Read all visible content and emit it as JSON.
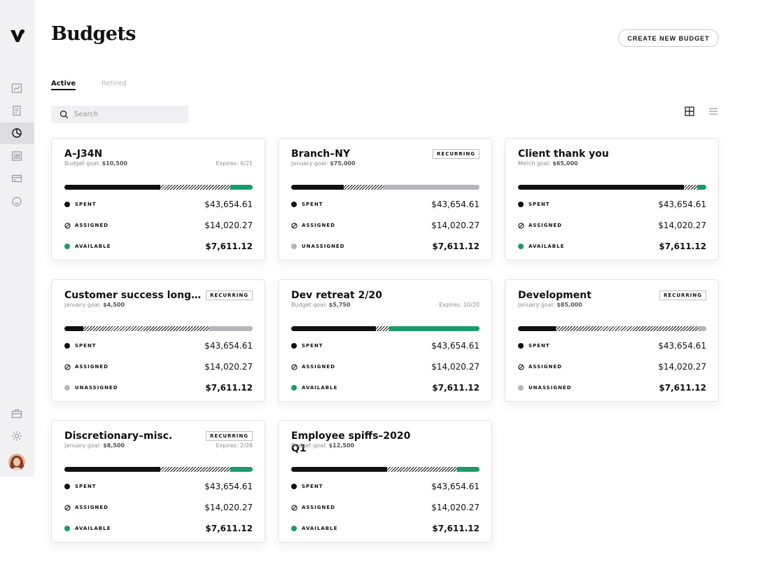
{
  "app": {
    "title": "Budgets"
  },
  "header": {
    "create_button": "CREATE NEW BUDGET"
  },
  "tabs": [
    {
      "label": "Active",
      "active": true
    },
    {
      "label": "Retired",
      "active": false
    }
  ],
  "search": {
    "placeholder": "Search",
    "value": ""
  },
  "sidebar": {
    "icons": [
      "dashboard-icon",
      "document-icon",
      "budgets-pie-icon",
      "people-icon",
      "card-icon",
      "smile-icon",
      "briefcase-icon",
      "settings-icon"
    ],
    "active": "budgets-pie-icon"
  },
  "view": {
    "mode": "grid"
  },
  "colors": {
    "green": "#1e9a6a",
    "gray": "#b5b5ba",
    "black": "#111111"
  },
  "labels": {
    "spent": "SPENT",
    "assigned": "ASSIGNED",
    "available": "AVAILABLE",
    "unassigned": "UNASSIGNED",
    "recurring": "RECURRING"
  },
  "budgets": [
    {
      "title": "A–J34N",
      "goal_label": "Budget goal:",
      "goal": "$10,500",
      "expires": "Expires: 6/21",
      "recurring": false,
      "spent": "$43,654.61",
      "assigned": "$14,020.27",
      "third_label": "AVAILABLE",
      "third_value": "$7,611.12",
      "third_status": "available",
      "bar": {
        "spent": 0.51,
        "assigned": 0.37,
        "rest": 0.12
      }
    },
    {
      "title": "Branch–NY",
      "goal_label": "January goal:",
      "goal": "$75,000",
      "expires": "",
      "recurring": true,
      "spent": "$43,654.61",
      "assigned": "$14,020.27",
      "third_label": "UNASSIGNED",
      "third_value": "$7,611.12",
      "third_status": "unassigned",
      "bar": {
        "spent": 0.28,
        "assigned": 0.21,
        "rest": 0.51
      }
    },
    {
      "title": "Client thank you",
      "goal_label": "Merch goal:",
      "goal": "$65,000",
      "expires": "",
      "recurring": false,
      "spent": "$43,654.61",
      "assigned": "$14,020.27",
      "third_label": "AVAILABLE",
      "third_value": "$7,611.12",
      "third_status": "available",
      "bar": {
        "spent": 0.88,
        "assigned": 0.07,
        "rest": 0.05
      }
    },
    {
      "title": "Customer success longis...",
      "goal_label": "January goal:",
      "goal": "$4,500",
      "expires": "",
      "recurring": true,
      "spent": "$43,654.61",
      "assigned": "$14,020.27",
      "third_label": "UNASSIGNED",
      "third_value": "$7,611.12",
      "third_status": "unassigned",
      "bar": {
        "spent": 0.1,
        "assigned": 0.67,
        "rest": 0.23
      }
    },
    {
      "title": "Dev retreat 2/20",
      "goal_label": "Budget goal:",
      "goal": "$5,750",
      "expires": "Expires: 10/20",
      "recurring": false,
      "spent": "$43,654.61",
      "assigned": "$14,020.27",
      "third_label": "AVAILABLE",
      "third_value": "$7,611.12",
      "third_status": "available",
      "bar": {
        "spent": 0.45,
        "assigned": 0.07,
        "rest": 0.48
      }
    },
    {
      "title": "Development",
      "goal_label": "January goal:",
      "goal": "$85,000",
      "expires": "",
      "recurring": true,
      "spent": "$43,654.61",
      "assigned": "$14,020.27",
      "third_label": "UNASSIGNED",
      "third_value": "$7,611.12",
      "third_status": "unassigned",
      "bar": {
        "spent": 0.2,
        "assigned": 0.76,
        "rest": 0.04
      }
    },
    {
      "title": "Discretionary–misc.",
      "goal_label": "January goal:",
      "goal": "$8,500",
      "expires": "Expires: 2/28",
      "recurring": true,
      "spent": "$43,654.61",
      "assigned": "$14,020.27",
      "third_label": "AVAILABLE",
      "third_value": "$7,611.12",
      "third_status": "available",
      "bar": {
        "spent": 0.51,
        "assigned": 0.37,
        "rest": 0.12
      }
    },
    {
      "title": "Employee spiffs–2020 Q1",
      "goal_label": "Budget goal:",
      "goal": "$12,500",
      "expires": "",
      "recurring": false,
      "spent": "$43,654.61",
      "assigned": "$14,020.27",
      "third_label": "AVAILABLE",
      "third_value": "$7,611.12",
      "third_status": "available",
      "bar": {
        "spent": 0.51,
        "assigned": 0.37,
        "rest": 0.12
      }
    }
  ]
}
